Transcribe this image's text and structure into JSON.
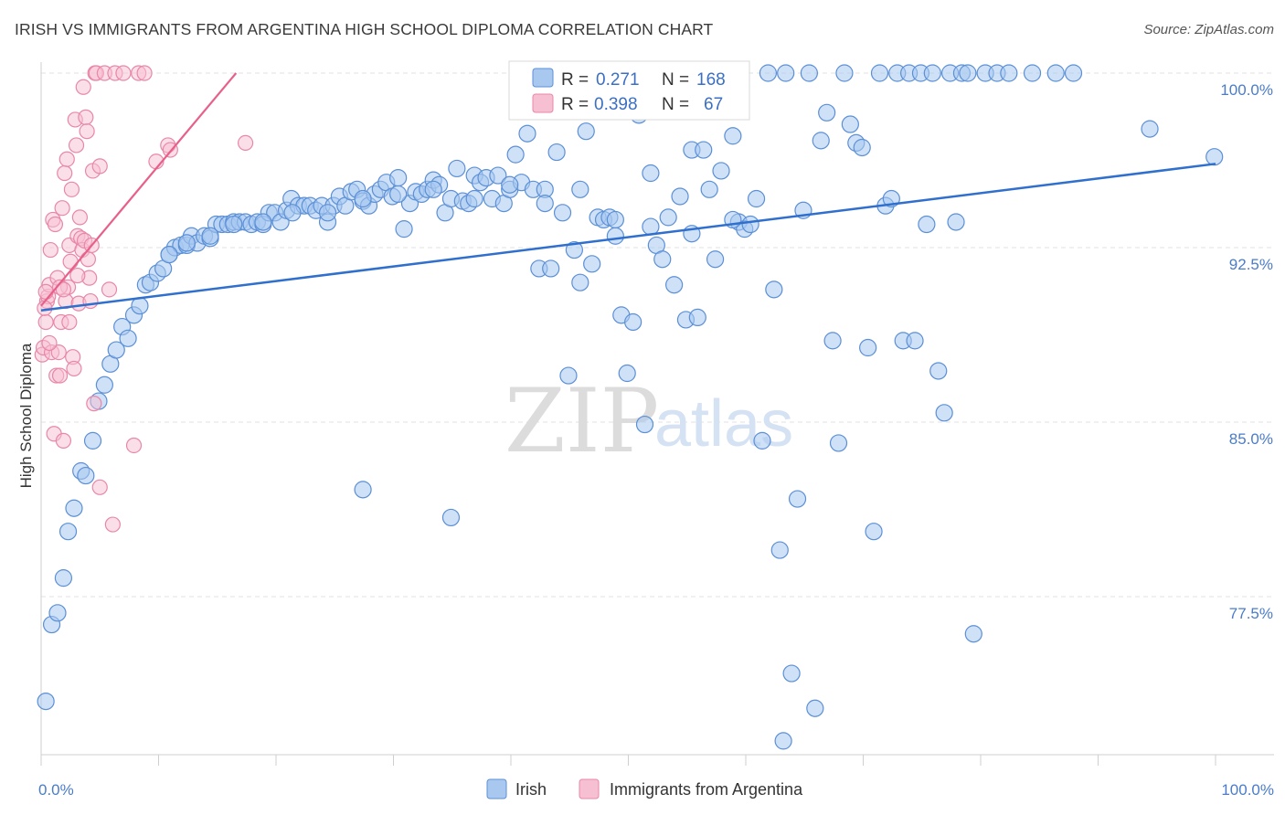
{
  "title": "IRISH VS IMMIGRANTS FROM ARGENTINA HIGH SCHOOL DIPLOMA CORRELATION CHART",
  "source": "Source: ZipAtlas.com",
  "watermark": {
    "zip": "ZIP",
    "atlas": "atlas"
  },
  "colors": {
    "blue_fill": "#a8c8f0",
    "blue_stroke": "#5b8fd6",
    "blue_line": "#2f6fce",
    "pink_fill": "#f7bfd2",
    "pink_stroke": "#e887a8",
    "pink_line": "#e8608a",
    "tick_text": "#4a7cc9",
    "grid": "#e2e2e2"
  },
  "legend": {
    "series": [
      {
        "r_label": "R =",
        "r_value": "0.271",
        "n_label": "N =",
        "n_value": "168"
      },
      {
        "r_label": "R =",
        "r_value": "0.398",
        "n_label": "N =",
        "n_value": "67"
      }
    ]
  },
  "chart_data": {
    "type": "scatter",
    "title": "IRISH VS IMMIGRANTS FROM ARGENTINA HIGH SCHOOL DIPLOMA CORRELATION CHART",
    "xlabel": "",
    "ylabel": "High School Diploma",
    "xlim": [
      0,
      100
    ],
    "ylim": [
      71,
      101.5
    ],
    "x_tick_labels": [
      "0.0%",
      "100.0%"
    ],
    "y_ticks": [
      77.5,
      85.0,
      92.5,
      100.0
    ],
    "y_tick_labels": [
      "77.5%",
      "85.0%",
      "92.5%",
      "100.0%"
    ],
    "legend_position": "bottom",
    "series": [
      {
        "name": "Irish",
        "trend": [
          [
            0,
            89.8
          ],
          [
            100,
            96.1
          ]
        ],
        "points": [
          [
            0.4,
            73.0
          ],
          [
            0.9,
            76.3
          ],
          [
            1.4,
            76.8
          ],
          [
            1.9,
            78.3
          ],
          [
            2.3,
            80.3
          ],
          [
            2.8,
            81.3
          ],
          [
            3.4,
            82.9
          ],
          [
            3.8,
            82.7
          ],
          [
            4.4,
            84.2
          ],
          [
            4.9,
            85.9
          ],
          [
            5.4,
            86.6
          ],
          [
            5.9,
            87.5
          ],
          [
            6.4,
            88.1
          ],
          [
            6.9,
            89.1
          ],
          [
            7.4,
            88.6
          ],
          [
            7.9,
            89.6
          ],
          [
            8.4,
            90.0
          ],
          [
            8.9,
            90.9
          ],
          [
            9.3,
            91.0
          ],
          [
            9.9,
            91.4
          ],
          [
            10.4,
            91.6
          ],
          [
            10.9,
            92.2
          ],
          [
            11.4,
            92.5
          ],
          [
            11.9,
            92.6
          ],
          [
            12.4,
            92.6
          ],
          [
            12.8,
            93.0
          ],
          [
            13.3,
            92.7
          ],
          [
            13.9,
            93.0
          ],
          [
            14.4,
            92.9
          ],
          [
            14.9,
            93.5
          ],
          [
            15.4,
            93.5
          ],
          [
            15.9,
            93.5
          ],
          [
            16.4,
            93.6
          ],
          [
            16.9,
            93.6
          ],
          [
            17.4,
            93.6
          ],
          [
            17.9,
            93.5
          ],
          [
            18.4,
            93.6
          ],
          [
            18.9,
            93.5
          ],
          [
            19.4,
            94.0
          ],
          [
            19.9,
            94.0
          ],
          [
            20.4,
            93.6
          ],
          [
            20.9,
            94.1
          ],
          [
            21.3,
            94.6
          ],
          [
            21.9,
            94.3
          ],
          [
            22.4,
            94.3
          ],
          [
            22.9,
            94.3
          ],
          [
            23.4,
            94.1
          ],
          [
            23.9,
            94.3
          ],
          [
            24.4,
            93.6
          ],
          [
            24.9,
            94.3
          ],
          [
            25.4,
            94.7
          ],
          [
            25.9,
            94.3
          ],
          [
            26.4,
            94.9
          ],
          [
            26.9,
            95.0
          ],
          [
            27.4,
            94.5
          ],
          [
            27.9,
            94.3
          ],
          [
            28.4,
            94.8
          ],
          [
            28.9,
            95.0
          ],
          [
            29.4,
            95.3
          ],
          [
            29.9,
            94.7
          ],
          [
            30.4,
            95.5
          ],
          [
            30.9,
            93.3
          ],
          [
            31.4,
            94.4
          ],
          [
            31.9,
            94.9
          ],
          [
            32.4,
            94.8
          ],
          [
            32.9,
            95.0
          ],
          [
            33.4,
            95.4
          ],
          [
            33.9,
            95.2
          ],
          [
            34.4,
            94.0
          ],
          [
            34.9,
            94.6
          ],
          [
            35.4,
            95.9
          ],
          [
            35.9,
            94.5
          ],
          [
            36.4,
            94.4
          ],
          [
            36.9,
            95.6
          ],
          [
            37.4,
            95.3
          ],
          [
            37.9,
            95.5
          ],
          [
            38.4,
            94.6
          ],
          [
            38.9,
            95.6
          ],
          [
            39.4,
            94.4
          ],
          [
            39.9,
            95.0
          ],
          [
            40.4,
            96.5
          ],
          [
            40.9,
            95.3
          ],
          [
            41.4,
            97.4
          ],
          [
            41.9,
            95.0
          ],
          [
            42.4,
            91.6
          ],
          [
            42.9,
            95.0
          ],
          [
            43.4,
            91.6
          ],
          [
            43.9,
            96.6
          ],
          [
            44.4,
            94.0
          ],
          [
            44.9,
            87.0
          ],
          [
            45.4,
            92.4
          ],
          [
            45.9,
            91.0
          ],
          [
            46.4,
            97.5
          ],
          [
            46.9,
            91.8
          ],
          [
            47.4,
            93.8
          ],
          [
            47.9,
            93.7
          ],
          [
            48.4,
            93.8
          ],
          [
            48.9,
            93.0
          ],
          [
            49.4,
            89.6
          ],
          [
            49.9,
            87.1
          ],
          [
            50.4,
            89.3
          ],
          [
            50.9,
            98.2
          ],
          [
            51.4,
            84.9
          ],
          [
            51.9,
            95.7
          ],
          [
            52.4,
            92.6
          ],
          [
            52.9,
            92.0
          ],
          [
            53.4,
            93.8
          ],
          [
            53.9,
            90.9
          ],
          [
            54.4,
            94.7
          ],
          [
            54.9,
            89.4
          ],
          [
            55.4,
            96.7
          ],
          [
            55.9,
            89.5
          ],
          [
            56.4,
            96.7
          ],
          [
            56.9,
            95.0
          ],
          [
            57.4,
            92.0
          ],
          [
            57.9,
            95.8
          ],
          [
            58.4,
            100.0
          ],
          [
            58.9,
            97.3
          ],
          [
            59.4,
            93.6
          ],
          [
            59.9,
            93.3
          ],
          [
            60.4,
            93.5
          ],
          [
            60.9,
            94.6
          ],
          [
            61.4,
            84.2
          ],
          [
            61.9,
            100.0
          ],
          [
            62.4,
            90.7
          ],
          [
            62.9,
            79.5
          ],
          [
            63.4,
            100.0
          ],
          [
            63.9,
            74.2
          ],
          [
            64.4,
            81.7
          ],
          [
            64.9,
            94.1
          ],
          [
            65.4,
            100.0
          ],
          [
            65.9,
            72.7
          ],
          [
            66.4,
            97.1
          ],
          [
            66.9,
            98.3
          ],
          [
            67.4,
            88.5
          ],
          [
            67.9,
            84.1
          ],
          [
            68.4,
            100.0
          ],
          [
            68.9,
            97.8
          ],
          [
            69.4,
            97.0
          ],
          [
            69.9,
            96.8
          ],
          [
            70.4,
            88.2
          ],
          [
            70.9,
            80.3
          ],
          [
            71.4,
            100.0
          ],
          [
            71.9,
            94.3
          ],
          [
            72.4,
            94.6
          ],
          [
            72.9,
            100.0
          ],
          [
            73.4,
            88.5
          ],
          [
            73.9,
            100.0
          ],
          [
            74.4,
            88.5
          ],
          [
            74.9,
            100.0
          ],
          [
            75.4,
            93.5
          ],
          [
            75.9,
            100.0
          ],
          [
            76.4,
            87.2
          ],
          [
            76.9,
            85.4
          ],
          [
            77.4,
            100.0
          ],
          [
            77.9,
            93.6
          ],
          [
            78.4,
            100.0
          ],
          [
            78.9,
            100.0
          ],
          [
            79.4,
            75.9
          ],
          [
            80.4,
            100.0
          ],
          [
            81.4,
            100.0
          ],
          [
            82.4,
            100.0
          ],
          [
            84.4,
            100.0
          ],
          [
            86.4,
            100.0
          ],
          [
            87.9,
            100.0
          ],
          [
            94.4,
            97.6
          ],
          [
            99.9,
            96.4
          ],
          [
            63.2,
            71.3
          ],
          [
            34.9,
            80.9
          ],
          [
            27.4,
            82.1
          ],
          [
            10.9,
            92.2
          ],
          [
            12.4,
            92.7
          ],
          [
            14.4,
            93.0
          ],
          [
            16.4,
            93.5
          ],
          [
            18.9,
            93.6
          ],
          [
            21.4,
            94.0
          ],
          [
            24.4,
            94.0
          ],
          [
            27.4,
            94.6
          ],
          [
            30.4,
            94.8
          ],
          [
            33.4,
            95.0
          ],
          [
            36.9,
            94.6
          ],
          [
            39.9,
            95.2
          ],
          [
            42.9,
            94.4
          ],
          [
            45.9,
            95.0
          ],
          [
            48.9,
            93.7
          ],
          [
            51.9,
            93.4
          ],
          [
            55.4,
            93.1
          ],
          [
            58.9,
            93.7
          ]
        ]
      },
      {
        "name": "Immigrants from Argentina",
        "trend": [
          [
            0,
            90.0
          ],
          [
            16.6,
            100.0
          ]
        ],
        "points": [
          [
            0.1,
            87.9
          ],
          [
            0.2,
            88.2
          ],
          [
            0.4,
            89.3
          ],
          [
            0.5,
            90.2
          ],
          [
            0.6,
            90.4
          ],
          [
            0.7,
            90.9
          ],
          [
            0.8,
            92.4
          ],
          [
            0.9,
            88.0
          ],
          [
            1.0,
            93.7
          ],
          [
            1.1,
            84.5
          ],
          [
            1.2,
            93.5
          ],
          [
            1.3,
            87.0
          ],
          [
            1.4,
            91.2
          ],
          [
            1.5,
            88.0
          ],
          [
            1.6,
            87.0
          ],
          [
            1.7,
            89.3
          ],
          [
            1.8,
            94.2
          ],
          [
            1.9,
            84.2
          ],
          [
            2.0,
            95.7
          ],
          [
            2.1,
            90.2
          ],
          [
            2.2,
            96.3
          ],
          [
            2.3,
            90.8
          ],
          [
            2.4,
            92.6
          ],
          [
            2.5,
            91.9
          ],
          [
            2.6,
            95.0
          ],
          [
            2.7,
            87.8
          ],
          [
            2.8,
            87.3
          ],
          [
            2.9,
            98.0
          ],
          [
            3.0,
            96.9
          ],
          [
            3.1,
            93.0
          ],
          [
            3.2,
            90.1
          ],
          [
            3.3,
            93.8
          ],
          [
            3.4,
            92.9
          ],
          [
            3.5,
            92.4
          ],
          [
            3.6,
            99.4
          ],
          [
            3.7,
            92.8
          ],
          [
            3.8,
            98.1
          ],
          [
            3.9,
            97.5
          ],
          [
            4.0,
            92.0
          ],
          [
            4.1,
            91.2
          ],
          [
            4.2,
            90.2
          ],
          [
            4.3,
            92.6
          ],
          [
            4.4,
            95.8
          ],
          [
            4.5,
            85.8
          ],
          [
            4.6,
            100.0
          ],
          [
            4.7,
            100.0
          ],
          [
            5.0,
            96.0
          ],
          [
            5.4,
            100.0
          ],
          [
            5.8,
            90.7
          ],
          [
            6.1,
            80.6
          ],
          [
            6.3,
            100.0
          ],
          [
            7.0,
            100.0
          ],
          [
            7.9,
            84.0
          ],
          [
            8.3,
            100.0
          ],
          [
            8.8,
            100.0
          ],
          [
            9.8,
            96.2
          ],
          [
            10.8,
            96.9
          ],
          [
            11.0,
            96.7
          ],
          [
            17.4,
            97.0
          ],
          [
            5.0,
            82.2
          ],
          [
            0.3,
            89.9
          ],
          [
            0.7,
            88.4
          ],
          [
            1.6,
            90.8
          ],
          [
            2.4,
            89.3
          ],
          [
            3.1,
            91.3
          ],
          [
            0.4,
            90.6
          ],
          [
            1.9,
            90.7
          ]
        ]
      }
    ]
  }
}
